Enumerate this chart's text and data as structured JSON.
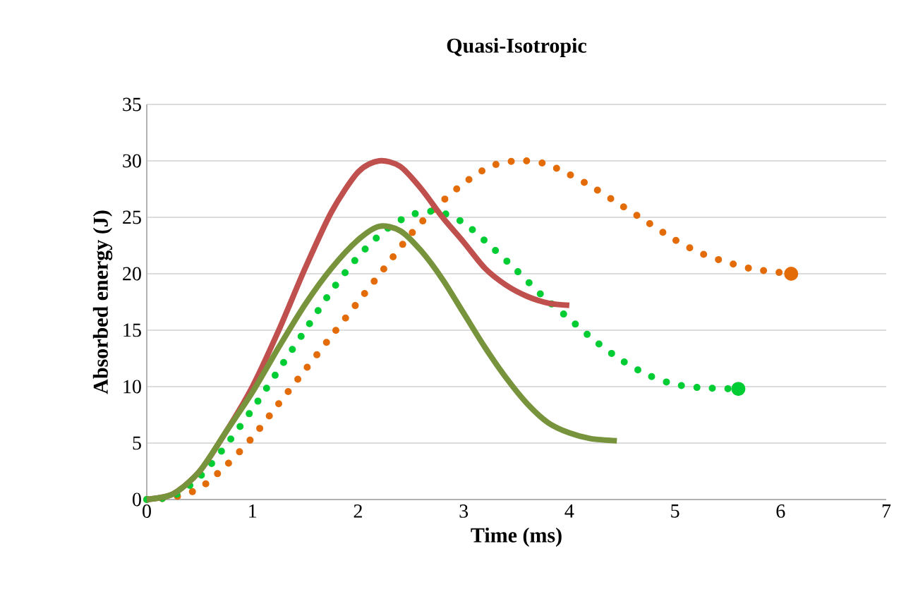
{
  "chart_data": {
    "type": "line",
    "title": "**Quasi-Isotropic**",
    "xlabel": "**Time (ms)**",
    "ylabel": "**Absorbed energy (J)**",
    "xlim": [
      0,
      7
    ],
    "xticks": [
      0,
      1,
      2,
      3,
      4,
      5,
      6,
      7
    ],
    "ylim": [
      0,
      35
    ],
    "yticks": [
      0,
      5,
      10,
      15,
      20,
      25,
      30,
      35
    ],
    "grid": "y",
    "marker": "none",
    "series": [
      {
        "color": "#e36c09",
        "line_style": "dotted",
        "x": [
          0,
          0.25,
          0.5,
          0.75,
          1,
          1.25,
          1.5,
          1.75,
          2,
          2.25,
          2.5,
          2.75,
          3,
          3.25,
          3.5,
          3.75,
          4,
          4.25,
          4.5,
          4.75,
          5,
          5.25,
          5.5,
          5.75,
          6.1
        ],
        "values": [
          0,
          0.2,
          1,
          3,
          5.5,
          8.5,
          11.5,
          14.5,
          17.5,
          20.5,
          23.5,
          26,
          28,
          29.5,
          30,
          29.8,
          28.8,
          27.5,
          26,
          24.5,
          23,
          21.8,
          21,
          20.4,
          20
        ]
      },
      {
        "color": "#00cc33",
        "line_style": "dotted",
        "x": [
          0,
          0.25,
          0.5,
          0.75,
          1,
          1.25,
          1.5,
          1.75,
          2,
          2.25,
          2.5,
          2.75,
          3,
          3.25,
          3.5,
          3.75,
          4,
          4.25,
          4.5,
          4.75,
          5,
          5.25,
          5.6
        ],
        "values": [
          0,
          0.3,
          2,
          4.8,
          8,
          11.5,
          15,
          18.5,
          21.5,
          23.8,
          25.2,
          25.5,
          24.5,
          22.5,
          20.3,
          18,
          16,
          14,
          12.3,
          11,
          10.2,
          9.9,
          9.8
        ]
      },
      {
        "color": "#c0504d",
        "line_style": "solid",
        "x": [
          0,
          0.25,
          0.5,
          0.75,
          1,
          1.25,
          1.5,
          1.75,
          2,
          2.2,
          2.4,
          2.6,
          2.8,
          3,
          3.2,
          3.4,
          3.6,
          3.8,
          4
        ],
        "values": [
          0,
          0.5,
          2.5,
          6,
          10,
          15,
          20.5,
          25.5,
          29,
          30,
          29.5,
          27.5,
          25,
          22.8,
          20.5,
          19,
          18,
          17.4,
          17.2
        ]
      },
      {
        "color": "#77933c",
        "line_style": "solid",
        "x": [
          0,
          0.25,
          0.5,
          0.75,
          1,
          1.25,
          1.5,
          1.75,
          2,
          2.2,
          2.4,
          2.6,
          2.8,
          3,
          3.2,
          3.4,
          3.6,
          3.8,
          4,
          4.2,
          4.45
        ],
        "values": [
          0,
          0.5,
          2.5,
          6,
          9.5,
          13.5,
          17.3,
          20.5,
          23,
          24.2,
          23.8,
          22,
          19.5,
          16.5,
          13.5,
          10.8,
          8.5,
          6.8,
          5.9,
          5.4,
          5.2
        ]
      }
    ]
  }
}
